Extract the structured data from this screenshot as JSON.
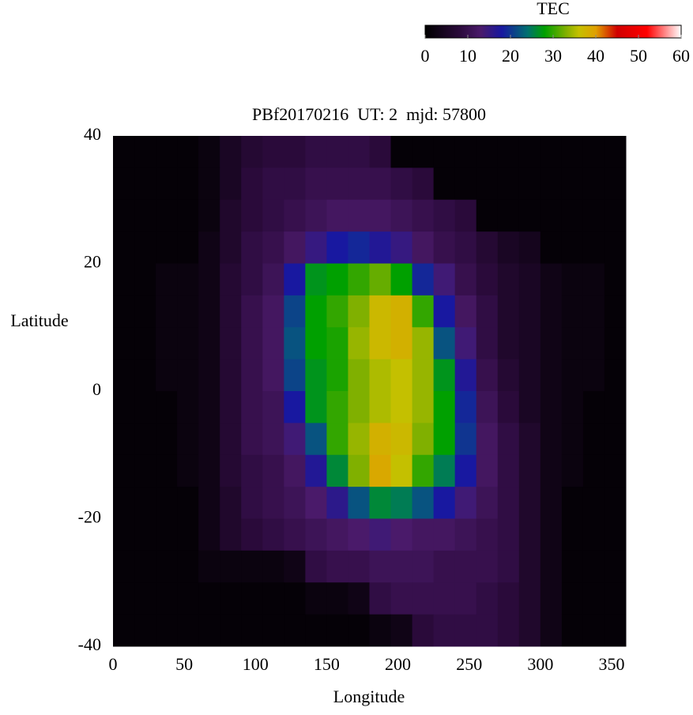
{
  "chart_data": {
    "type": "heatmap",
    "title": "PBf20170216  UT: 2  mjd: 57800",
    "xlabel": "Longitude",
    "ylabel": "Latitude",
    "xlim": [
      0,
      360
    ],
    "ylim": [
      -40,
      40
    ],
    "xticks": [
      0,
      50,
      100,
      150,
      200,
      250,
      300,
      350
    ],
    "yticks": [
      -40,
      -20,
      0,
      20,
      40
    ],
    "xbins": [
      0,
      15,
      30,
      45,
      60,
      75,
      90,
      105,
      120,
      135,
      150,
      165,
      180,
      195,
      210,
      225,
      240,
      255,
      270,
      285,
      300,
      315,
      330,
      345,
      360
    ],
    "ybins": [
      40,
      35,
      30,
      25,
      20,
      15,
      10,
      5,
      0,
      -5,
      -10,
      -15,
      -20,
      -25,
      -30,
      -35,
      -40
    ],
    "values": [
      [
        1,
        1,
        1,
        1,
        2,
        5,
        7,
        8,
        8,
        9,
        9,
        9,
        8,
        1,
        1,
        1,
        1,
        1,
        1,
        1,
        1,
        1,
        1,
        1
      ],
      [
        1,
        1,
        1,
        1,
        2,
        5,
        8,
        9,
        9,
        10,
        10,
        10,
        10,
        9,
        8,
        1,
        1,
        1,
        1,
        1,
        1,
        1,
        1,
        1
      ],
      [
        1,
        1,
        1,
        1,
        2,
        6,
        8,
        9,
        10,
        11,
        12,
        12,
        12,
        11,
        10,
        9,
        8,
        1,
        1,
        1,
        1,
        1,
        1,
        1
      ],
      [
        1,
        1,
        1,
        1,
        3,
        6,
        9,
        10,
        12,
        15,
        18,
        19,
        17,
        15,
        12,
        10,
        9,
        7,
        5,
        4,
        1,
        1,
        1,
        1
      ],
      [
        1,
        1,
        2,
        2,
        3,
        7,
        9,
        11,
        18,
        27,
        28,
        30,
        32,
        28,
        19,
        14,
        10,
        8,
        6,
        5,
        3,
        2,
        2,
        1
      ],
      [
        1,
        1,
        2,
        2,
        3,
        7,
        10,
        12,
        21,
        28,
        30,
        33,
        37,
        38,
        30,
        18,
        12,
        9,
        6,
        5,
        3,
        2,
        2,
        1
      ],
      [
        1,
        1,
        2,
        2,
        3,
        7,
        10,
        12,
        22,
        28,
        29,
        34,
        37,
        38,
        34,
        22,
        14,
        9,
        6,
        5,
        3,
        2,
        2,
        1
      ],
      [
        1,
        1,
        2,
        2,
        3,
        7,
        10,
        12,
        21,
        27,
        29,
        33,
        35,
        36,
        34,
        27,
        17,
        10,
        7,
        5,
        3,
        2,
        2,
        1
      ],
      [
        1,
        1,
        1,
        2,
        3,
        7,
        10,
        11,
        18,
        27,
        30,
        33,
        35,
        36,
        34,
        28,
        19,
        11,
        8,
        5,
        3,
        2,
        1,
        1
      ],
      [
        1,
        1,
        1,
        2,
        3,
        7,
        10,
        11,
        14,
        22,
        30,
        34,
        38,
        37,
        33,
        28,
        20,
        12,
        9,
        6,
        3,
        2,
        1,
        1
      ],
      [
        1,
        1,
        1,
        2,
        3,
        7,
        9,
        10,
        12,
        17,
        26,
        33,
        39,
        36,
        30,
        25,
        18,
        12,
        9,
        6,
        3,
        2,
        1,
        1
      ],
      [
        1,
        1,
        1,
        1,
        3,
        6,
        9,
        10,
        11,
        13,
        16,
        22,
        26,
        25,
        22,
        18,
        14,
        11,
        9,
        6,
        3,
        1,
        1,
        1
      ],
      [
        1,
        1,
        1,
        1,
        3,
        6,
        8,
        9,
        10,
        11,
        12,
        13,
        14,
        13,
        12,
        12,
        11,
        10,
        9,
        6,
        3,
        1,
        1,
        1
      ],
      [
        1,
        1,
        1,
        1,
        2,
        2,
        2,
        2,
        3,
        9,
        10,
        10,
        11,
        11,
        11,
        10,
        10,
        10,
        9,
        6,
        3,
        1,
        1,
        1
      ],
      [
        1,
        1,
        1,
        1,
        1,
        1,
        1,
        1,
        1,
        2,
        2,
        3,
        9,
        10,
        10,
        10,
        10,
        9,
        8,
        6,
        3,
        1,
        1,
        1
      ],
      [
        1,
        1,
        1,
        1,
        1,
        1,
        1,
        1,
        1,
        1,
        1,
        1,
        2,
        3,
        8,
        9,
        9,
        9,
        8,
        6,
        3,
        1,
        1,
        1
      ]
    ],
    "colorbar": {
      "label": "TEC",
      "lim": [
        0,
        60
      ],
      "ticks": [
        0,
        10,
        20,
        30,
        40,
        50,
        60
      ],
      "colorscale": [
        [
          0,
          "#000000"
        ],
        [
          8,
          "#2a0a3a"
        ],
        [
          13,
          "#4a1a6a"
        ],
        [
          18,
          "#1818a0"
        ],
        [
          24,
          "#007070"
        ],
        [
          28,
          "#00a000"
        ],
        [
          33,
          "#80b000"
        ],
        [
          36,
          "#c4c000"
        ],
        [
          40,
          "#e0a000"
        ],
        [
          45,
          "#d00000"
        ],
        [
          52,
          "#ff0000"
        ],
        [
          60,
          "#ffffff"
        ]
      ]
    }
  }
}
